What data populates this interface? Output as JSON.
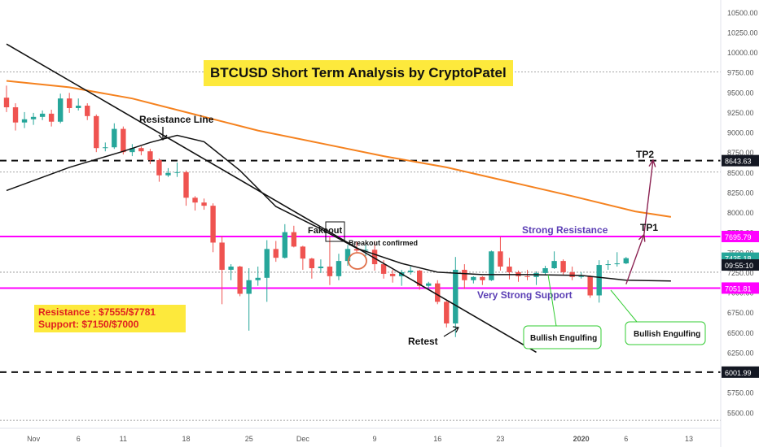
{
  "title": "BTCUSD Short Term Analysis by CryptoPatel",
  "notes": {
    "resistance": "Resistance : $7555/$7781",
    "support": "Support: $7150/$7000"
  },
  "colors": {
    "bull": "#26a69a",
    "bear": "#ef5350",
    "ma_long": "#f5821f",
    "ma_short": "#111111",
    "trendline": "#111111",
    "zone": "#ff00ff",
    "projection": "#8b2252",
    "support_text": "#5b3fb5",
    "callout_border": "#33cc33",
    "title_bg": "#fde93c",
    "note_text": "#e02020"
  },
  "labels": {
    "resistance_line": "Resistance Line",
    "fakeout": "Fakeout",
    "breakout": "Breakout confirmed",
    "strong_resistance": "Strong Resistance",
    "very_strong_support": "Very Strong Support",
    "retest": "Retest",
    "tp1": "TP1",
    "tp2": "TP2",
    "bullish_engulfing_1": "Bullish Engulfing",
    "bullish_engulfing_2": "Bullish Engulfing"
  },
  "chart_data": {
    "type": "candlestick",
    "symbol": "BTCUSD",
    "y_range": [
      5300,
      10650
    ],
    "y_ticks": [
      5500,
      5750,
      6000,
      6250,
      6500,
      6750,
      7000,
      7250,
      7500,
      7750,
      8000,
      8250,
      8500,
      8750,
      9000,
      9250,
      9500,
      9750,
      10000,
      10250,
      10500
    ],
    "y_tick_labels": [
      "5500.00",
      "5750.00",
      "6000.00",
      "6250.00",
      "6500.00",
      "6750.00",
      "7000.00",
      "7250.00",
      "7500.00",
      "7750.00",
      "8000.00",
      "8250.00",
      "8500.00",
      "8750.00",
      "9000.00",
      "9250.00",
      "9500.00",
      "9750.00",
      "10000.00",
      "10250.00",
      "10500.00"
    ],
    "x_range": [
      "2019-10-29",
      "2020-01-14"
    ],
    "x_ticks": [
      {
        "date": "2019-11-01",
        "label": "Nov"
      },
      {
        "date": "2019-11-06",
        "label": "6"
      },
      {
        "date": "2019-11-11",
        "label": "11"
      },
      {
        "date": "2019-11-18",
        "label": "18"
      },
      {
        "date": "2019-11-25",
        "label": "25"
      },
      {
        "date": "2019-12-01",
        "label": "Dec"
      },
      {
        "date": "2019-12-09",
        "label": "9"
      },
      {
        "date": "2019-12-16",
        "label": "16"
      },
      {
        "date": "2019-12-23",
        "label": "23"
      },
      {
        "date": "2020-01-01",
        "label": "2020"
      },
      {
        "date": "2020-01-06",
        "label": "6"
      },
      {
        "date": "2020-01-13",
        "label": "13"
      }
    ],
    "price_markers": [
      {
        "value": 8643.63,
        "label": "8643.63",
        "style": "dark"
      },
      {
        "value": 7695.79,
        "label": "7695.79",
        "style": "magenta"
      },
      {
        "value": 7425.18,
        "label": "7425.18",
        "style": "teal"
      },
      {
        "value": 7340,
        "label": "09:55:10",
        "style": "dark"
      },
      {
        "value": 7051.81,
        "label": "7051.81",
        "style": "magenta"
      },
      {
        "value": 6001.99,
        "label": "6001.99",
        "style": "dark"
      }
    ],
    "horizontal_lines": [
      {
        "value": 8643.63,
        "style": "dashed"
      },
      {
        "value": 6001.99,
        "style": "dashed"
      },
      {
        "value": 7695.79,
        "style": "zone"
      },
      {
        "value": 7051.81,
        "style": "zone"
      },
      {
        "value": 9750,
        "style": "dotted"
      },
      {
        "value": 8500,
        "style": "dotted"
      },
      {
        "value": 7250,
        "style": "dotted"
      },
      {
        "value": 5400,
        "style": "dotted"
      }
    ],
    "trendline": {
      "from": {
        "date": "2019-10-29",
        "value": 10100
      },
      "to": {
        "date": "2019-12-27",
        "value": 6250
      }
    },
    "moving_average_long": [
      {
        "date": "2019-10-29",
        "value": 9640
      },
      {
        "date": "2019-11-05",
        "value": 9560
      },
      {
        "date": "2019-11-12",
        "value": 9420
      },
      {
        "date": "2019-11-19",
        "value": 9220
      },
      {
        "date": "2019-11-26",
        "value": 9020
      },
      {
        "date": "2019-12-03",
        "value": 8860
      },
      {
        "date": "2019-12-10",
        "value": 8700
      },
      {
        "date": "2019-12-17",
        "value": 8560
      },
      {
        "date": "2019-12-24",
        "value": 8380
      },
      {
        "date": "2019-12-31",
        "value": 8200
      },
      {
        "date": "2020-01-07",
        "value": 8010
      },
      {
        "date": "2020-01-11",
        "value": 7940
      }
    ],
    "moving_average_short": [
      {
        "date": "2019-10-29",
        "value": 8270
      },
      {
        "date": "2019-11-05",
        "value": 8560
      },
      {
        "date": "2019-11-11",
        "value": 8760
      },
      {
        "date": "2019-11-14",
        "value": 8870
      },
      {
        "date": "2019-11-17",
        "value": 8960
      },
      {
        "date": "2019-11-20",
        "value": 8880
      },
      {
        "date": "2019-11-24",
        "value": 8520
      },
      {
        "date": "2019-11-28",
        "value": 8070
      },
      {
        "date": "2019-12-03",
        "value": 7790
      },
      {
        "date": "2019-12-07",
        "value": 7550
      },
      {
        "date": "2019-12-12",
        "value": 7360
      },
      {
        "date": "2019-12-16",
        "value": 7250
      },
      {
        "date": "2019-12-21",
        "value": 7220
      },
      {
        "date": "2019-12-26",
        "value": 7220
      },
      {
        "date": "2020-01-01",
        "value": 7210
      },
      {
        "date": "2020-01-06",
        "value": 7150
      },
      {
        "date": "2020-01-11",
        "value": 7140
      }
    ],
    "projection": [
      {
        "date": "2020-01-06",
        "value": 7100
      },
      {
        "date": "2020-01-08",
        "value": 7720
      },
      {
        "date": "2020-01-09",
        "value": 8650
      }
    ],
    "candles": [
      {
        "date": "2019-10-29",
        "open": 9430,
        "high": 9580,
        "low": 9250,
        "close": 9310
      },
      {
        "date": "2019-10-30",
        "open": 9310,
        "high": 9360,
        "low": 9020,
        "close": 9120
      },
      {
        "date": "2019-10-31",
        "open": 9120,
        "high": 9250,
        "low": 9050,
        "close": 9160
      },
      {
        "date": "2019-11-01",
        "open": 9160,
        "high": 9240,
        "low": 9090,
        "close": 9190
      },
      {
        "date": "2019-11-02",
        "open": 9190,
        "high": 9270,
        "low": 9150,
        "close": 9230
      },
      {
        "date": "2019-11-03",
        "open": 9230,
        "high": 9280,
        "low": 9070,
        "close": 9130
      },
      {
        "date": "2019-11-04",
        "open": 9130,
        "high": 9480,
        "low": 9110,
        "close": 9420
      },
      {
        "date": "2019-11-05",
        "open": 9420,
        "high": 9490,
        "low": 9240,
        "close": 9300
      },
      {
        "date": "2019-11-06",
        "open": 9300,
        "high": 9420,
        "low": 9270,
        "close": 9330
      },
      {
        "date": "2019-11-07",
        "open": 9330,
        "high": 9360,
        "low": 9150,
        "close": 9200
      },
      {
        "date": "2019-11-08",
        "open": 9200,
        "high": 9220,
        "low": 8750,
        "close": 8800
      },
      {
        "date": "2019-11-09",
        "open": 8800,
        "high": 8870,
        "low": 8760,
        "close": 8810
      },
      {
        "date": "2019-11-10",
        "open": 8810,
        "high": 9110,
        "low": 8790,
        "close": 9040
      },
      {
        "date": "2019-11-11",
        "open": 9040,
        "high": 9070,
        "low": 8720,
        "close": 8750
      },
      {
        "date": "2019-11-12",
        "open": 8750,
        "high": 8850,
        "low": 8700,
        "close": 8800
      },
      {
        "date": "2019-11-13",
        "open": 8800,
        "high": 8820,
        "low": 8710,
        "close": 8760
      },
      {
        "date": "2019-11-14",
        "open": 8760,
        "high": 8790,
        "low": 8600,
        "close": 8650
      },
      {
        "date": "2019-11-15",
        "open": 8650,
        "high": 8670,
        "low": 8380,
        "close": 8460
      },
      {
        "date": "2019-11-16",
        "open": 8460,
        "high": 8550,
        "low": 8440,
        "close": 8490
      },
      {
        "date": "2019-11-17",
        "open": 8490,
        "high": 8620,
        "low": 8440,
        "close": 8500
      },
      {
        "date": "2019-11-18",
        "open": 8500,
        "high": 8520,
        "low": 8080,
        "close": 8180
      },
      {
        "date": "2019-11-19",
        "open": 8180,
        "high": 8200,
        "low": 8020,
        "close": 8120
      },
      {
        "date": "2019-11-20",
        "open": 8120,
        "high": 8170,
        "low": 8030,
        "close": 8080
      },
      {
        "date": "2019-11-21",
        "open": 8080,
        "high": 8110,
        "low": 7500,
        "close": 7620
      },
      {
        "date": "2019-11-22",
        "open": 7620,
        "high": 7700,
        "low": 6850,
        "close": 7280
      },
      {
        "date": "2019-11-23",
        "open": 7280,
        "high": 7350,
        "low": 7150,
        "close": 7320
      },
      {
        "date": "2019-11-24",
        "open": 7320,
        "high": 7330,
        "low": 6950,
        "close": 6980
      },
      {
        "date": "2019-11-25",
        "open": 6980,
        "high": 7300,
        "low": 6520,
        "close": 7150
      },
      {
        "date": "2019-11-26",
        "open": 7150,
        "high": 7320,
        "low": 7080,
        "close": 7180
      },
      {
        "date": "2019-11-27",
        "open": 7180,
        "high": 7650,
        "low": 6880,
        "close": 7540
      },
      {
        "date": "2019-11-28",
        "open": 7540,
        "high": 7640,
        "low": 7380,
        "close": 7430
      },
      {
        "date": "2019-11-29",
        "open": 7430,
        "high": 7850,
        "low": 7420,
        "close": 7750
      },
      {
        "date": "2019-11-30",
        "open": 7750,
        "high": 7830,
        "low": 7560,
        "close": 7570
      },
      {
        "date": "2019-12-01",
        "open": 7570,
        "high": 7580,
        "low": 7280,
        "close": 7420
      },
      {
        "date": "2019-12-02",
        "open": 7420,
        "high": 7430,
        "low": 7170,
        "close": 7300
      },
      {
        "date": "2019-12-03",
        "open": 7300,
        "high": 7410,
        "low": 7240,
        "close": 7320
      },
      {
        "date": "2019-12-04",
        "open": 7320,
        "high": 7700,
        "low": 7090,
        "close": 7200
      },
      {
        "date": "2019-12-05",
        "open": 7200,
        "high": 7480,
        "low": 7150,
        "close": 7390
      },
      {
        "date": "2019-12-06",
        "open": 7390,
        "high": 7590,
        "low": 7330,
        "close": 7540
      },
      {
        "date": "2019-12-07",
        "open": 7540,
        "high": 7630,
        "low": 7500,
        "close": 7520
      },
      {
        "date": "2019-12-08",
        "open": 7520,
        "high": 7600,
        "low": 7450,
        "close": 7530
      },
      {
        "date": "2019-12-09",
        "open": 7530,
        "high": 7640,
        "low": 7270,
        "close": 7350
      },
      {
        "date": "2019-12-10",
        "open": 7350,
        "high": 7400,
        "low": 7170,
        "close": 7230
      },
      {
        "date": "2019-12-11",
        "open": 7230,
        "high": 7280,
        "low": 7120,
        "close": 7200
      },
      {
        "date": "2019-12-12",
        "open": 7200,
        "high": 7280,
        "low": 7080,
        "close": 7250
      },
      {
        "date": "2019-12-13",
        "open": 7250,
        "high": 7320,
        "low": 7220,
        "close": 7270
      },
      {
        "date": "2019-12-14",
        "open": 7270,
        "high": 7280,
        "low": 7030,
        "close": 7080
      },
      {
        "date": "2019-12-15",
        "open": 7080,
        "high": 7130,
        "low": 7030,
        "close": 7110
      },
      {
        "date": "2019-12-16",
        "open": 7110,
        "high": 7150,
        "low": 6850,
        "close": 6880
      },
      {
        "date": "2019-12-17",
        "open": 6880,
        "high": 6900,
        "low": 6560,
        "close": 6610
      },
      {
        "date": "2019-12-18",
        "open": 6610,
        "high": 7440,
        "low": 6440,
        "close": 7280
      },
      {
        "date": "2019-12-19",
        "open": 7280,
        "high": 7350,
        "low": 7040,
        "close": 7150
      },
      {
        "date": "2019-12-20",
        "open": 7150,
        "high": 7200,
        "low": 7110,
        "close": 7190
      },
      {
        "date": "2019-12-21",
        "open": 7190,
        "high": 7200,
        "low": 7090,
        "close": 7150
      },
      {
        "date": "2019-12-22",
        "open": 7150,
        "high": 7520,
        "low": 7140,
        "close": 7510
      },
      {
        "date": "2019-12-23",
        "open": 7510,
        "high": 7690,
        "low": 7270,
        "close": 7320
      },
      {
        "date": "2019-12-24",
        "open": 7320,
        "high": 7430,
        "low": 7160,
        "close": 7250
      },
      {
        "date": "2019-12-25",
        "open": 7250,
        "high": 7270,
        "low": 7130,
        "close": 7200
      },
      {
        "date": "2019-12-26",
        "open": 7200,
        "high": 7280,
        "low": 7150,
        "close": 7190
      },
      {
        "date": "2019-12-27",
        "open": 7190,
        "high": 7260,
        "low": 7090,
        "close": 7240
      },
      {
        "date": "2019-12-28",
        "open": 7240,
        "high": 7330,
        "low": 7220,
        "close": 7300
      },
      {
        "date": "2019-12-29",
        "open": 7300,
        "high": 7510,
        "low": 7290,
        "close": 7390
      },
      {
        "date": "2019-12-30",
        "open": 7390,
        "high": 7410,
        "low": 7220,
        "close": 7250
      },
      {
        "date": "2019-12-31",
        "open": 7250,
        "high": 7320,
        "low": 7150,
        "close": 7190
      },
      {
        "date": "2020-01-01",
        "open": 7190,
        "high": 7250,
        "low": 7170,
        "close": 7200
      },
      {
        "date": "2020-01-02",
        "open": 7200,
        "high": 7210,
        "low": 6930,
        "close": 6960
      },
      {
        "date": "2020-01-03",
        "open": 6960,
        "high": 7400,
        "low": 6870,
        "close": 7340
      },
      {
        "date": "2020-01-04",
        "open": 7340,
        "high": 7400,
        "low": 7280,
        "close": 7350
      },
      {
        "date": "2020-01-05",
        "open": 7350,
        "high": 7500,
        "low": 7320,
        "close": 7360
      },
      {
        "date": "2020-01-06",
        "open": 7360,
        "high": 7440,
        "low": 7350,
        "close": 7425
      }
    ]
  }
}
